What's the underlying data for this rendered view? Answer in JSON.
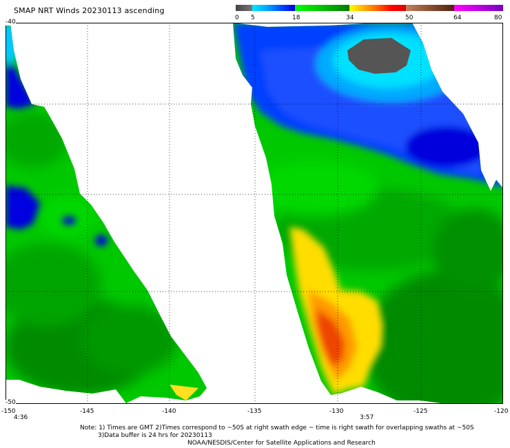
{
  "title": "SMAP NRT Winds 20230113 ascending",
  "colorbar": {
    "labels": [
      "0",
      "5",
      "18",
      "34",
      "50",
      "64",
      "80"
    ],
    "segments": [
      {
        "from": 0,
        "to": 5,
        "color": "#555555"
      },
      {
        "from": 5,
        "to": 18,
        "color": "#1a6bff"
      },
      {
        "from": 18,
        "to": 34,
        "color": "#00b000"
      },
      {
        "from": 34,
        "to": 50,
        "color": "#ff3300"
      },
      {
        "from": 50,
        "to": 64,
        "color": "#8a5030"
      },
      {
        "from": 64,
        "to": 80,
        "color": "#cc00cc"
      }
    ]
  },
  "map": {
    "lat_labels": [
      "-40",
      "-50"
    ],
    "lon_labels": [
      "-150",
      "-145",
      "-140",
      "-135",
      "-130",
      "-125",
      "-120"
    ],
    "time_labels": [
      "4:36",
      "3:57"
    ]
  },
  "notes": {
    "line1": "Note: 1) Times are GMT 2)Times correspond to ~50S at right swath edge ~ time is right swath for overlapping swaths at ~50S",
    "line2": "3)Data buffer is 24 hrs for 20230113",
    "line3": "NOAA/NESDIS/Center for Satellite Applications and Research"
  }
}
